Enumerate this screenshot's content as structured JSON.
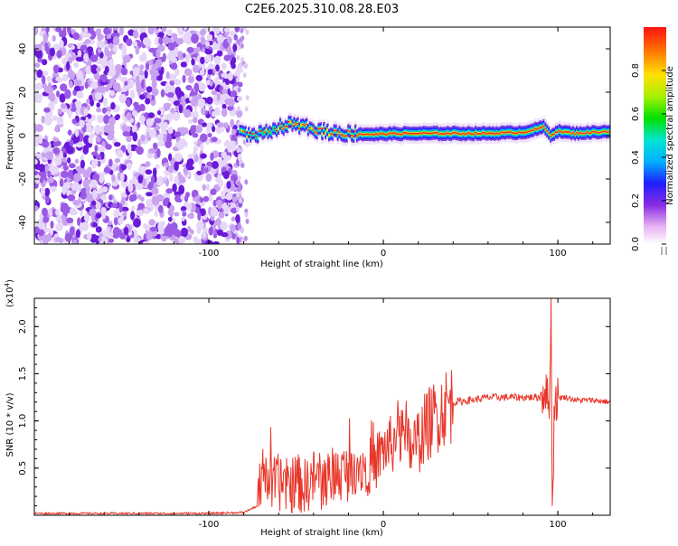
{
  "figure": {
    "title": "C2E6.2025.310.08.28.E03"
  },
  "chart_data": [
    {
      "type": "heatmap",
      "title": "C2E6.2025.310.08.28.E03",
      "xlabel": "Height of straight line (km)",
      "ylabel": "Frequency (Hz)",
      "xlim": [
        -200,
        130
      ],
      "ylim": [
        -50,
        50
      ],
      "xticks": [
        -100,
        0,
        100
      ],
      "yticks": [
        -40,
        -20,
        0,
        20,
        40
      ],
      "noise_region_x": [
        -200,
        -82
      ],
      "ridge": {
        "description": "narrow band of high spectral amplitude near 0-3 Hz",
        "x": [
          -82,
          -75,
          -65,
          -55,
          -45,
          -35,
          -25,
          -15,
          -5,
          0,
          20,
          40,
          60,
          80,
          88,
          92,
          96,
          100,
          110,
          130
        ],
        "f": [
          2,
          0,
          2,
          5,
          4,
          2,
          1,
          1,
          0.5,
          0.8,
          1,
          1,
          1,
          1.5,
          3,
          4,
          0,
          2,
          1,
          2
        ],
        "peak": [
          0.5,
          0.6,
          0.65,
          0.75,
          0.7,
          0.7,
          0.8,
          0.85,
          0.9,
          0.9,
          0.95,
          1.0,
          0.95,
          0.9,
          0.95,
          0.9,
          0.8,
          0.9,
          0.85,
          0.85
        ]
      },
      "colorbar": {
        "label": "Normalized spectral amplitude",
        "range": [
          0.0,
          1.0
        ],
        "ticks": [
          0.0,
          0.2,
          0.4,
          0.6,
          0.8
        ]
      }
    },
    {
      "type": "line",
      "xlabel": "Height of straight line (km)",
      "ylabel": "SNR (10 * v/v)",
      "y_scale_label": "(x10",
      "y_scale_exp": "4",
      "xlim": [
        -200,
        130
      ],
      "ylim": [
        0,
        2.3
      ],
      "xticks": [
        -100,
        0,
        100
      ],
      "yticks": [
        0.5,
        1.0,
        1.5,
        2.0
      ],
      "series": [
        {
          "name": "SNR",
          "color": "#e8362a",
          "x": [
            -200,
            -150,
            -100,
            -80,
            -72,
            -68,
            -65,
            -60,
            -55,
            -50,
            -45,
            -40,
            -35,
            -30,
            -25,
            -20,
            -15,
            -10,
            -5,
            0,
            5,
            10,
            15,
            20,
            25,
            30,
            35,
            40,
            50,
            60,
            70,
            80,
            85,
            90,
            93,
            95,
            96,
            97,
            98,
            100,
            105,
            110,
            120,
            130
          ],
          "y": [
            0.02,
            0.02,
            0.02,
            0.03,
            0.1,
            0.55,
            0.3,
            0.35,
            0.3,
            0.35,
            0.3,
            0.4,
            0.35,
            0.4,
            0.45,
            0.45,
            0.55,
            0.5,
            0.55,
            0.7,
            0.75,
            0.85,
            0.7,
            0.8,
            0.95,
            1.05,
            1.15,
            1.2,
            1.22,
            1.25,
            1.25,
            1.25,
            1.25,
            1.25,
            1.35,
            1.1,
            2.2,
            0.1,
            1.2,
            1.25,
            1.25,
            1.22,
            1.22,
            1.2
          ]
        }
      ]
    }
  ]
}
